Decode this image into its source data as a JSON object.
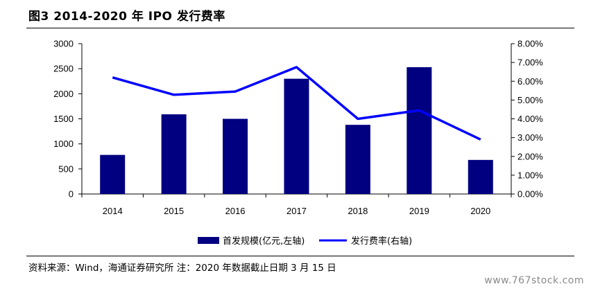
{
  "title": "图3  2014-2020 年 IPO 发行费率",
  "source_note": "资料来源：Wind，海通证券研究所 注：2020 年数据截止日期 3 月 15 日",
  "watermark": "www.767stock.com",
  "colors": {
    "bar": "#000080",
    "line": "#0000FF",
    "axis": "#000000"
  },
  "chart_data": {
    "type": "bar",
    "categories": [
      "2014",
      "2015",
      "2016",
      "2017",
      "2018",
      "2019",
      "2020"
    ],
    "series": [
      {
        "name": "首发规模(亿元,左轴)",
        "type": "bar",
        "axis": "left",
        "values": [
          780,
          1590,
          1500,
          2300,
          1380,
          2530,
          680
        ]
      },
      {
        "name": "发行费率(右轴)",
        "type": "line",
        "axis": "right",
        "values": [
          0.062,
          0.0528,
          0.0545,
          0.0675,
          0.04,
          0.0445,
          0.029
        ]
      }
    ],
    "ylim_left": [
      0,
      3000
    ],
    "ylim_right": [
      0,
      0.08
    ],
    "left_ticks": [
      "0",
      "500",
      "1000",
      "1500",
      "2000",
      "2500",
      "3000"
    ],
    "right_ticks": [
      "0.00%",
      "1.00%",
      "2.00%",
      "3.00%",
      "4.00%",
      "5.00%",
      "6.00%",
      "7.00%",
      "8.00%"
    ],
    "grid": false,
    "legend_position": "bottom"
  }
}
